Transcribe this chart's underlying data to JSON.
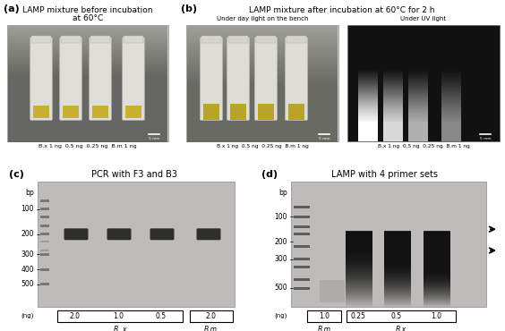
{
  "fig_width": 5.64,
  "fig_height": 3.7,
  "fig_dpi": 100,
  "background_color": "#ffffff",
  "panel_a": {
    "label": "(a)",
    "title_line1": "LAMP mixture before incubation",
    "title_line2": "at 60°C",
    "bottom_text": "B.x 1 ng  0.5 ng  0.25 ng  B.m 1 ng",
    "label_fontsize": 8,
    "title_fontsize": 6.5
  },
  "panel_b": {
    "label": "(b)",
    "title": "LAMP mixture after incubation at 60°C for 2 h",
    "sub_title_left": "Under day light on the bench",
    "sub_title_right": "Under UV light",
    "bottom_text_left": "B.x 1 ng  0.5 ng  0.25 ng  B.m 1 ng",
    "bottom_text_right": "B.x 1 ng  0.5 ng  0.25 ng  B.m 1 ng",
    "label_fontsize": 8,
    "title_fontsize": 6.5
  },
  "panel_c": {
    "label": "(c)",
    "title": "PCR with F3 and B3",
    "img_color": "#bebcb8",
    "bp_label": "bp",
    "bp_marks": [
      [
        "500",
        0.82
      ],
      [
        "400",
        0.7
      ],
      [
        "300",
        0.58
      ],
      [
        "200",
        0.42
      ],
      [
        "100",
        0.22
      ]
    ],
    "ng_label": "(ng)",
    "samples_bx": [
      "2.0",
      "1.0",
      "0.5"
    ],
    "samples_bm": [
      "2.0"
    ],
    "species_bx": "B. x",
    "species_bm": "B.m.",
    "label_fontsize": 8,
    "title_fontsize": 7
  },
  "panel_d": {
    "label": "(d)",
    "title": "LAMP with 4 primer sets",
    "img_color": "#bebcb8",
    "bp_label": "bp",
    "bp_marks": [
      [
        "500",
        0.85
      ],
      [
        "300",
        0.62
      ],
      [
        "200",
        0.48
      ],
      [
        "100",
        0.28
      ]
    ],
    "ng_label": "(ng)",
    "samples_bm": [
      "1.0"
    ],
    "samples_bx": [
      "0.25",
      "0.5",
      "1.0"
    ],
    "species_bm": "B.m",
    "species_bx": "B.x",
    "label_fontsize": 8,
    "title_fontsize": 7
  }
}
